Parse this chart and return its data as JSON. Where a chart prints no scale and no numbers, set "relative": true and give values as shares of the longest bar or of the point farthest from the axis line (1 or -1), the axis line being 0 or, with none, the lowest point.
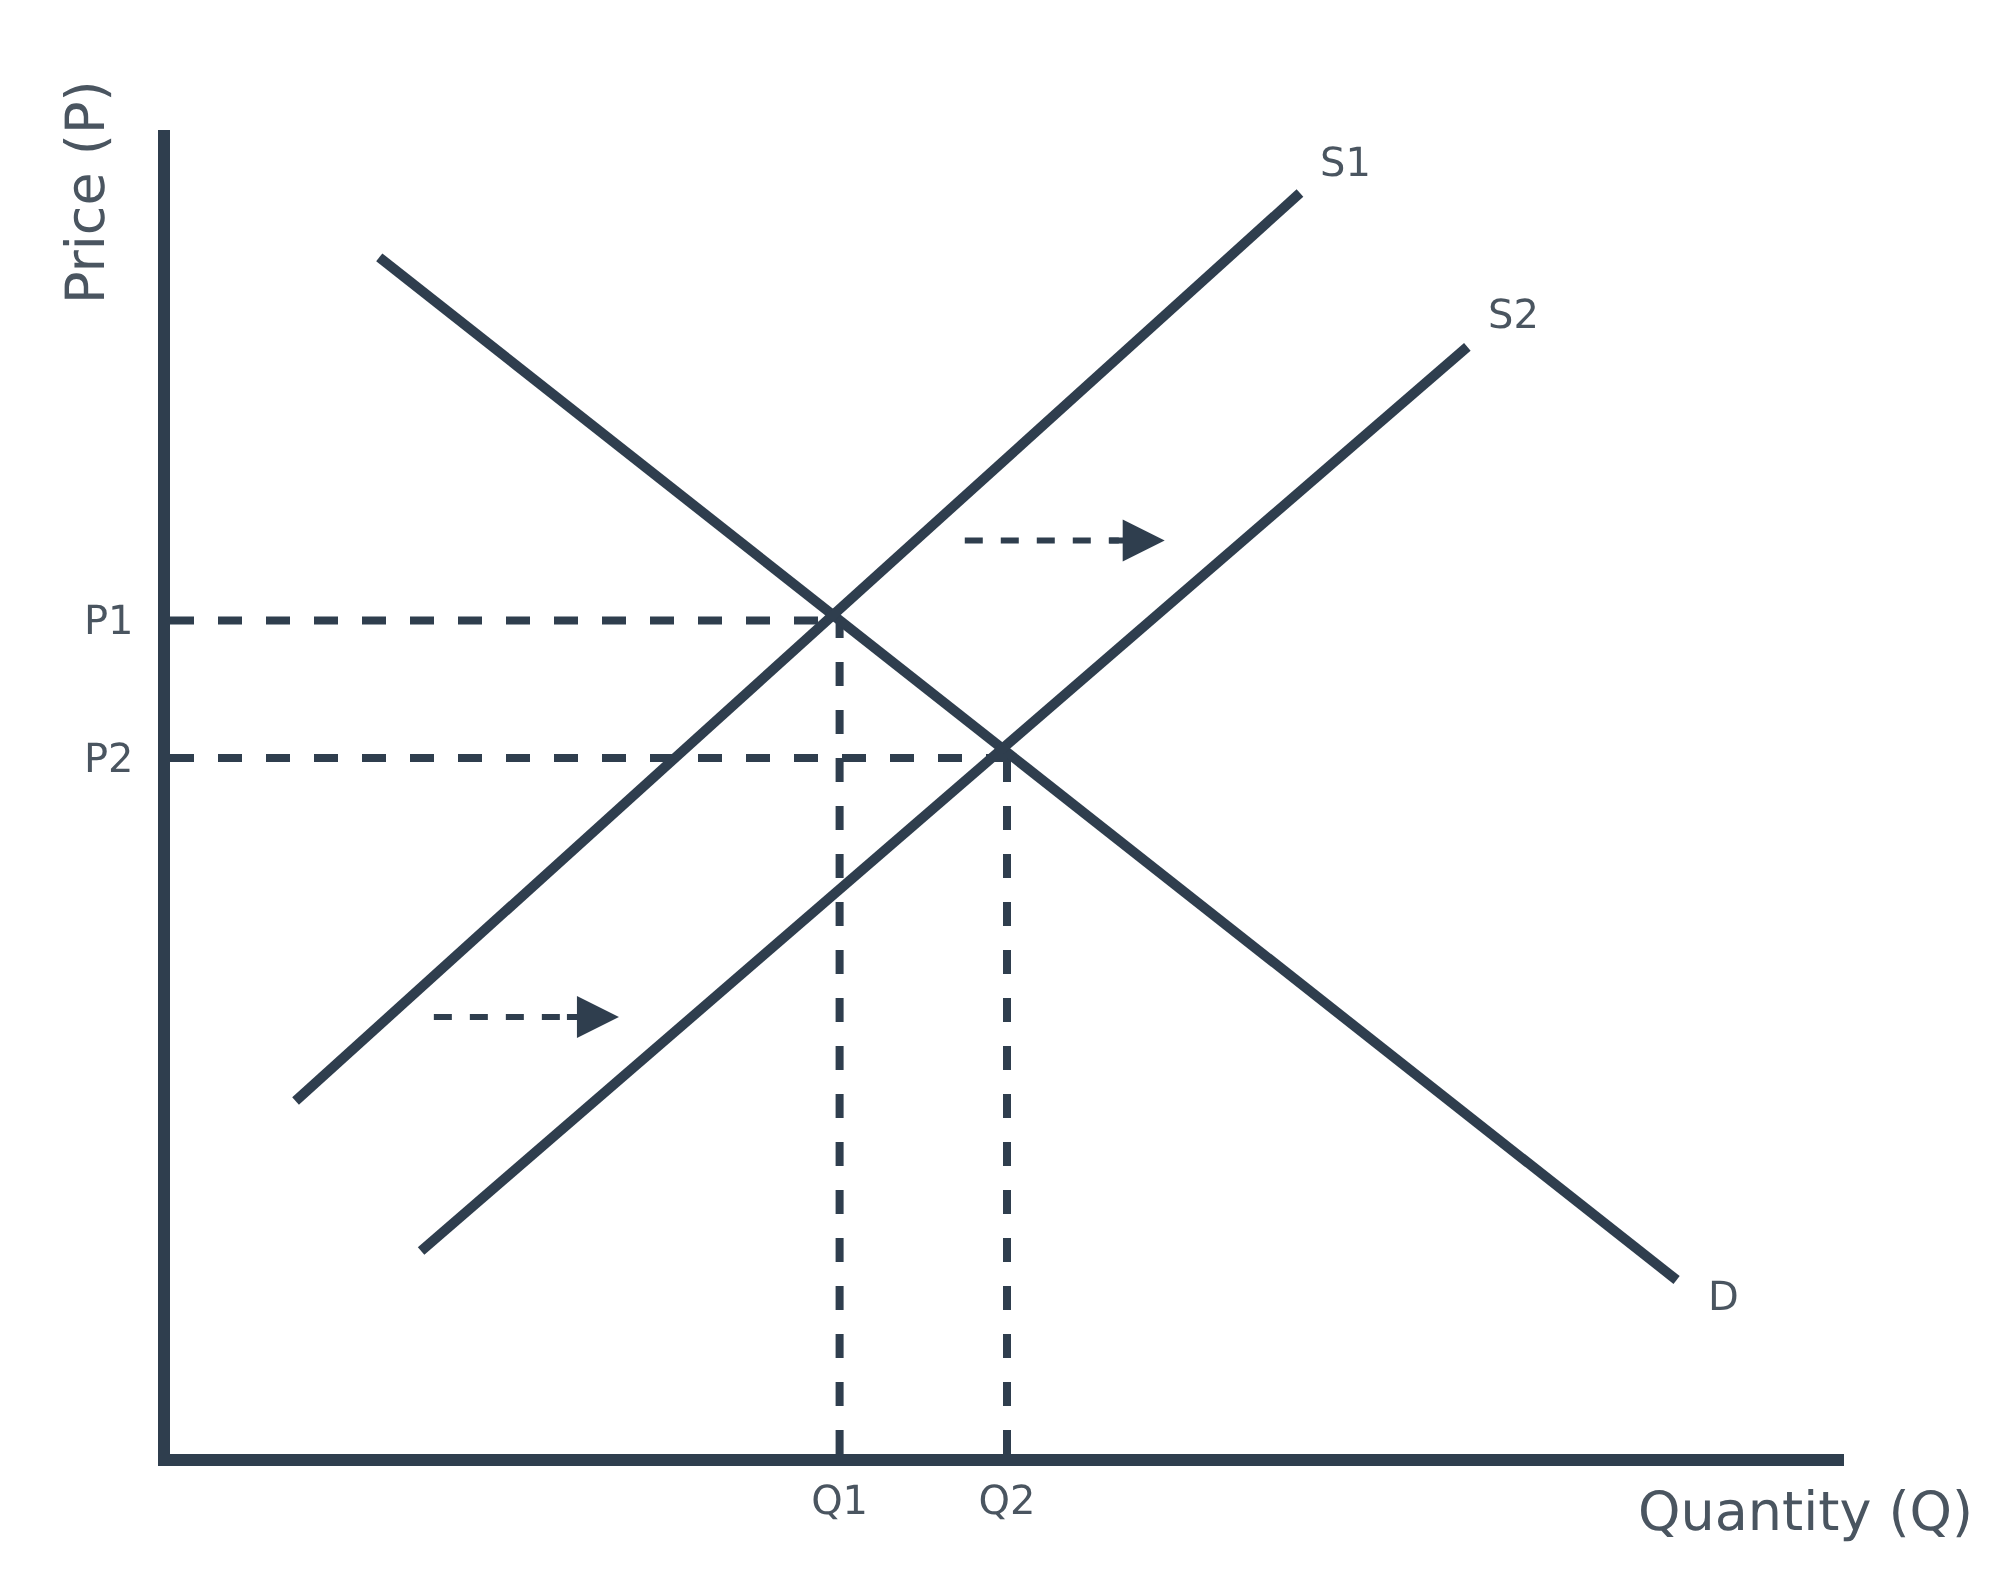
{
  "chart_data": {
    "type": "line",
    "relative": true,
    "xlabel": "Quantity (Q)",
    "ylabel": "Price (P)",
    "legend": false,
    "marker": "none",
    "line_style": "solid",
    "categories": [
      null,
      null,
      null,
      null,
      null,
      null,
      null,
      null,
      null,
      null,
      null,
      null,
      null,
      null,
      null,
      null,
      "Q1",
      null,
      null,
      null,
      "Q2",
      null,
      null,
      null,
      null,
      null,
      null,
      null,
      null,
      null,
      null,
      null,
      null,
      null,
      null,
      null,
      null,
      null,
      null,
      null,
      null
    ],
    "series": [
      {
        "name": "D",
        "color": "#2f3e4e",
        "values": [
          null,
          null,
          null,
          null,
          null,
          0.949,
          null,
          null,
          null,
          null,
          null,
          null,
          null,
          null,
          null,
          null,
          null,
          null,
          null,
          null,
          null,
          null,
          null,
          null,
          null,
          null,
          null,
          null,
          null,
          null,
          null,
          null,
          null,
          null,
          null,
          null,
          0.138,
          null,
          null,
          null,
          null
        ]
      },
      {
        "name": "S1",
        "color": "#2f3e4e",
        "values": [
          null,
          null,
          null,
          0.28,
          null,
          null,
          null,
          null,
          null,
          null,
          null,
          null,
          null,
          null,
          null,
          null,
          null,
          null,
          null,
          null,
          null,
          null,
          null,
          null,
          null,
          null,
          null,
          1.0,
          null,
          null,
          null,
          null,
          null,
          null,
          null,
          null,
          null,
          null,
          null,
          null,
          null
        ]
      },
      {
        "name": "S2",
        "color": "#2f3e4e",
        "values": [
          null,
          null,
          null,
          null,
          null,
          null,
          0.161,
          null,
          null,
          null,
          null,
          null,
          null,
          null,
          null,
          null,
          null,
          null,
          null,
          null,
          null,
          null,
          null,
          null,
          null,
          null,
          null,
          null,
          null,
          null,
          null,
          0.878,
          null,
          null,
          null,
          null,
          null,
          null,
          null,
          null,
          null
        ]
      },
      {
        "color": "#2f3e4e",
        "line_style": "dashed",
        "values": [
          0.661,
          null,
          null,
          null,
          null,
          null,
          null,
          null,
          null,
          null,
          null,
          null,
          null,
          null,
          null,
          null,
          0.661,
          null,
          null,
          null,
          null,
          null,
          null,
          null,
          null,
          null,
          null,
          null,
          null,
          null,
          null,
          null,
          null,
          null,
          null,
          null,
          null,
          null,
          null,
          null,
          null
        ]
      },
      {
        "color": "#2f3e4e",
        "line_style": "dashed",
        "values": [
          0.552,
          null,
          null,
          null,
          null,
          null,
          null,
          null,
          null,
          null,
          null,
          null,
          null,
          null,
          null,
          null,
          null,
          null,
          null,
          null,
          0.552,
          null,
          null,
          null,
          null,
          null,
          null,
          null,
          null,
          null,
          null,
          null,
          null,
          null,
          null,
          null,
          null,
          null,
          null,
          null,
          null
        ]
      }
    ],
    "annotations": [
      "P1",
      "P2"
    ]
  }
}
